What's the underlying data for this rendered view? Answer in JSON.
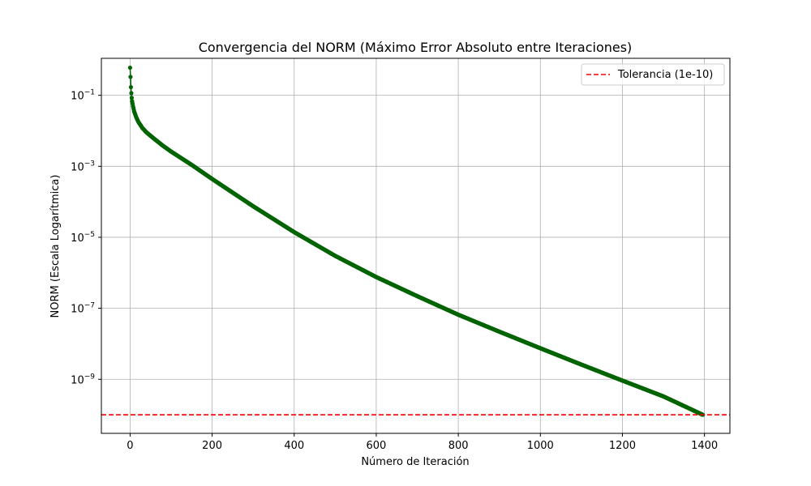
{
  "chart_data": {
    "type": "line",
    "title": "Convergencia del NORM (Máximo Error Absoluto entre Iteraciones)",
    "xlabel": "Número de Iteración",
    "ylabel": "NORM (Escala Logarítmica)",
    "xlim": [
      -70,
      1462
    ],
    "ylim": [
      3e-11,
      1.1
    ],
    "yscale": "log",
    "grid": true,
    "legend_position": "top-right",
    "x_ticks": [
      0,
      200,
      400,
      600,
      800,
      1000,
      1200,
      1400
    ],
    "x_tick_labels": [
      "0",
      "200",
      "400",
      "600",
      "800",
      "1000",
      "1200",
      "1400"
    ],
    "y_ticks": [
      0.1,
      0.001,
      1e-05,
      1e-07,
      1e-09
    ],
    "y_tick_labels": [
      {
        "base": "10",
        "exp": "−1"
      },
      {
        "base": "10",
        "exp": "−3"
      },
      {
        "base": "10",
        "exp": "−5"
      },
      {
        "base": "10",
        "exp": "−7"
      },
      {
        "base": "10",
        "exp": "−9"
      }
    ],
    "series": [
      {
        "color": "#006400",
        "marker": "circle",
        "iterations": 1396,
        "anchors": {
          "x": [
            0,
            1,
            2,
            3,
            4,
            5,
            7,
            10,
            15,
            20,
            30,
            40,
            60,
            80,
            100,
            150,
            200,
            300,
            400,
            500,
            600,
            700,
            800,
            900,
            1000,
            1100,
            1200,
            1300,
            1396
          ],
          "y": [
            0.6,
            0.33,
            0.17,
            0.115,
            0.085,
            0.068,
            0.05,
            0.035,
            0.024,
            0.018,
            0.012,
            0.009,
            0.0058,
            0.0038,
            0.0026,
            0.0011,
            0.00044,
            7.5e-05,
            1.4e-05,
            3e-06,
            7.6e-07,
            2.2e-07,
            6.6e-08,
            2.2e-08,
            7.5e-09,
            2.6e-09,
            9.2e-10,
            3.3e-10,
            1e-10
          ]
        }
      }
    ],
    "hlines": [
      {
        "name": "Tolerancia (1e-10)",
        "y": 1e-10,
        "color": "#ff0000",
        "style": "dashed"
      }
    ]
  }
}
